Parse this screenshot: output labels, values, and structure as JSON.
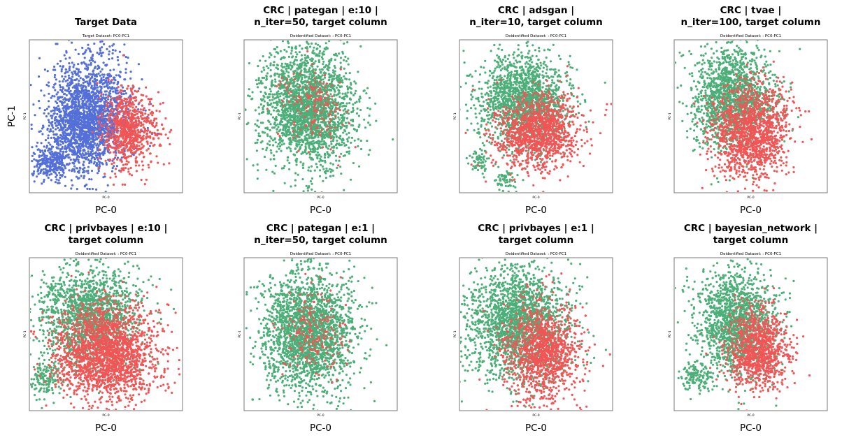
{
  "colors": {
    "target_blue": "#5470d8",
    "synthetic_green": "#4caf78",
    "red": "#f25555",
    "frame": "#7a7a7a"
  },
  "chart_data": [
    {
      "type": "scatter",
      "title": [
        "Target Data"
      ],
      "subtitle": "Target Dataset: PC0-PC1",
      "inner_xlabel": "PC-0",
      "inner_ylabel": "PC-1",
      "xlabel": "PC-0",
      "ylabel": "PC-1",
      "grid": false,
      "series": [
        {
          "color": "#5470d8",
          "clusters": [
            {
              "cx": 0.4,
              "cy": 0.55,
              "sx": 0.13,
              "sy": 0.18,
              "n": 1600
            },
            {
              "cx": 0.33,
              "cy": 0.38,
              "sx": 0.11,
              "sy": 0.12,
              "n": 600
            },
            {
              "cx": 0.14,
              "cy": 0.19,
              "sx": 0.06,
              "sy": 0.06,
              "n": 260
            }
          ]
        },
        {
          "color": "#f25555",
          "clusters": [
            {
              "cx": 0.64,
              "cy": 0.42,
              "sx": 0.08,
              "sy": 0.13,
              "n": 700
            },
            {
              "cx": 0.78,
              "cy": 0.4,
              "sx": 0.06,
              "sy": 0.1,
              "n": 80
            }
          ]
        }
      ]
    },
    {
      "type": "scatter",
      "title": [
        "CRC | pategan | e:10 |",
        "n_iter=50, target column"
      ],
      "subtitle": "Deidentified Dataset: : PC0-PC1",
      "inner_xlabel": "PC-0",
      "inner_ylabel": "PC-1",
      "xlabel": "PC-0",
      "ylabel": "",
      "grid": false,
      "series": [
        {
          "color": "#4caf78",
          "clusters": [
            {
              "cx": 0.42,
              "cy": 0.55,
              "sx": 0.15,
              "sy": 0.2,
              "n": 2300
            }
          ]
        },
        {
          "color": "#f25555",
          "clusters": [
            {
              "cx": 0.45,
              "cy": 0.55,
              "sx": 0.1,
              "sy": 0.13,
              "n": 160
            }
          ]
        }
      ]
    },
    {
      "type": "scatter",
      "title": [
        "CRC | adsgan |",
        "n_iter=10, target column"
      ],
      "subtitle": "Deidentified Dataset: : PC0-PC1",
      "inner_xlabel": "PC-0",
      "inner_ylabel": "PC-1",
      "xlabel": "PC-0",
      "ylabel": "",
      "grid": false,
      "series": [
        {
          "color": "#4caf78",
          "clusters": [
            {
              "cx": 0.42,
              "cy": 0.6,
              "sx": 0.14,
              "sy": 0.15,
              "n": 1600
            },
            {
              "cx": 0.14,
              "cy": 0.2,
              "sx": 0.03,
              "sy": 0.04,
              "n": 60
            },
            {
              "cx": 0.3,
              "cy": 0.08,
              "sx": 0.04,
              "sy": 0.04,
              "n": 60
            }
          ]
        },
        {
          "color": "#f25555",
          "clusters": [
            {
              "cx": 0.52,
              "cy": 0.4,
              "sx": 0.13,
              "sy": 0.12,
              "n": 1200
            }
          ]
        }
      ]
    },
    {
      "type": "scatter",
      "title": [
        "CRC | tvae |",
        "n_iter=100, target column"
      ],
      "subtitle": "Deidentified Dataset: : PC0-PC1",
      "inner_xlabel": "PC-0",
      "inner_ylabel": "PC-1",
      "xlabel": "PC-0",
      "ylabel": "",
      "grid": false,
      "series": [
        {
          "color": "#4caf78",
          "clusters": [
            {
              "cx": 0.38,
              "cy": 0.62,
              "sx": 0.13,
              "sy": 0.16,
              "n": 1500
            }
          ]
        },
        {
          "color": "#f25555",
          "clusters": [
            {
              "cx": 0.5,
              "cy": 0.4,
              "sx": 0.12,
              "sy": 0.15,
              "n": 1400
            }
          ]
        }
      ]
    },
    {
      "type": "scatter",
      "title": [
        "CRC | privbayes | e:10 |",
        "target column"
      ],
      "subtitle": "Deidentified Dataset: : PC0-PC1",
      "inner_xlabel": "PC-0",
      "inner_ylabel": "PC-1",
      "xlabel": "PC-0",
      "ylabel": "",
      "grid": false,
      "series": [
        {
          "color": "#4caf78",
          "clusters": [
            {
              "cx": 0.38,
              "cy": 0.62,
              "sx": 0.16,
              "sy": 0.17,
              "n": 1600
            },
            {
              "cx": 0.1,
              "cy": 0.2,
              "sx": 0.05,
              "sy": 0.06,
              "n": 140
            }
          ]
        },
        {
          "color": "#f25555",
          "clusters": [
            {
              "cx": 0.5,
              "cy": 0.37,
              "sx": 0.17,
              "sy": 0.16,
              "n": 2000
            }
          ]
        }
      ]
    },
    {
      "type": "scatter",
      "title": [
        "CRC | pategan | e:1 |",
        "n_iter=50, target column"
      ],
      "subtitle": "Deidentified Dataset: : PC0-PC1",
      "inner_xlabel": "PC-0",
      "inner_ylabel": "PC-1",
      "xlabel": "PC-0",
      "ylabel": "",
      "grid": false,
      "series": [
        {
          "color": "#4caf78",
          "clusters": [
            {
              "cx": 0.42,
              "cy": 0.52,
              "sx": 0.15,
              "sy": 0.2,
              "n": 2300
            }
          ]
        },
        {
          "color": "#f25555",
          "clusters": [
            {
              "cx": 0.45,
              "cy": 0.5,
              "sx": 0.1,
              "sy": 0.13,
              "n": 180
            }
          ]
        }
      ]
    },
    {
      "type": "scatter",
      "title": [
        "CRC | privbayes | e:1 |",
        "target column"
      ],
      "subtitle": "Deidentified Dataset: : PC0-PC1",
      "inner_xlabel": "PC-0",
      "inner_ylabel": "PC-1",
      "xlabel": "PC-0",
      "ylabel": "",
      "grid": false,
      "series": [
        {
          "color": "#4caf78",
          "clusters": [
            {
              "cx": 0.38,
              "cy": 0.58,
              "sx": 0.16,
              "sy": 0.19,
              "n": 2000
            }
          ]
        },
        {
          "color": "#f25555",
          "clusters": [
            {
              "cx": 0.54,
              "cy": 0.38,
              "sx": 0.12,
              "sy": 0.16,
              "n": 1200
            }
          ]
        }
      ]
    },
    {
      "type": "scatter",
      "title": [
        "CRC | bayesian_network |",
        "target column"
      ],
      "subtitle": "Deidentified Dataset: : PC0-PC1",
      "inner_xlabel": "PC-0",
      "inner_ylabel": "PC-1",
      "xlabel": "PC-0",
      "ylabel": "",
      "grid": false,
      "series": [
        {
          "color": "#4caf78",
          "clusters": [
            {
              "cx": 0.4,
              "cy": 0.58,
              "sx": 0.13,
              "sy": 0.17,
              "n": 1500
            },
            {
              "cx": 0.14,
              "cy": 0.22,
              "sx": 0.05,
              "sy": 0.05,
              "n": 130
            }
          ]
        },
        {
          "color": "#f25555",
          "clusters": [
            {
              "cx": 0.55,
              "cy": 0.4,
              "sx": 0.1,
              "sy": 0.13,
              "n": 1000
            }
          ]
        }
      ]
    }
  ]
}
